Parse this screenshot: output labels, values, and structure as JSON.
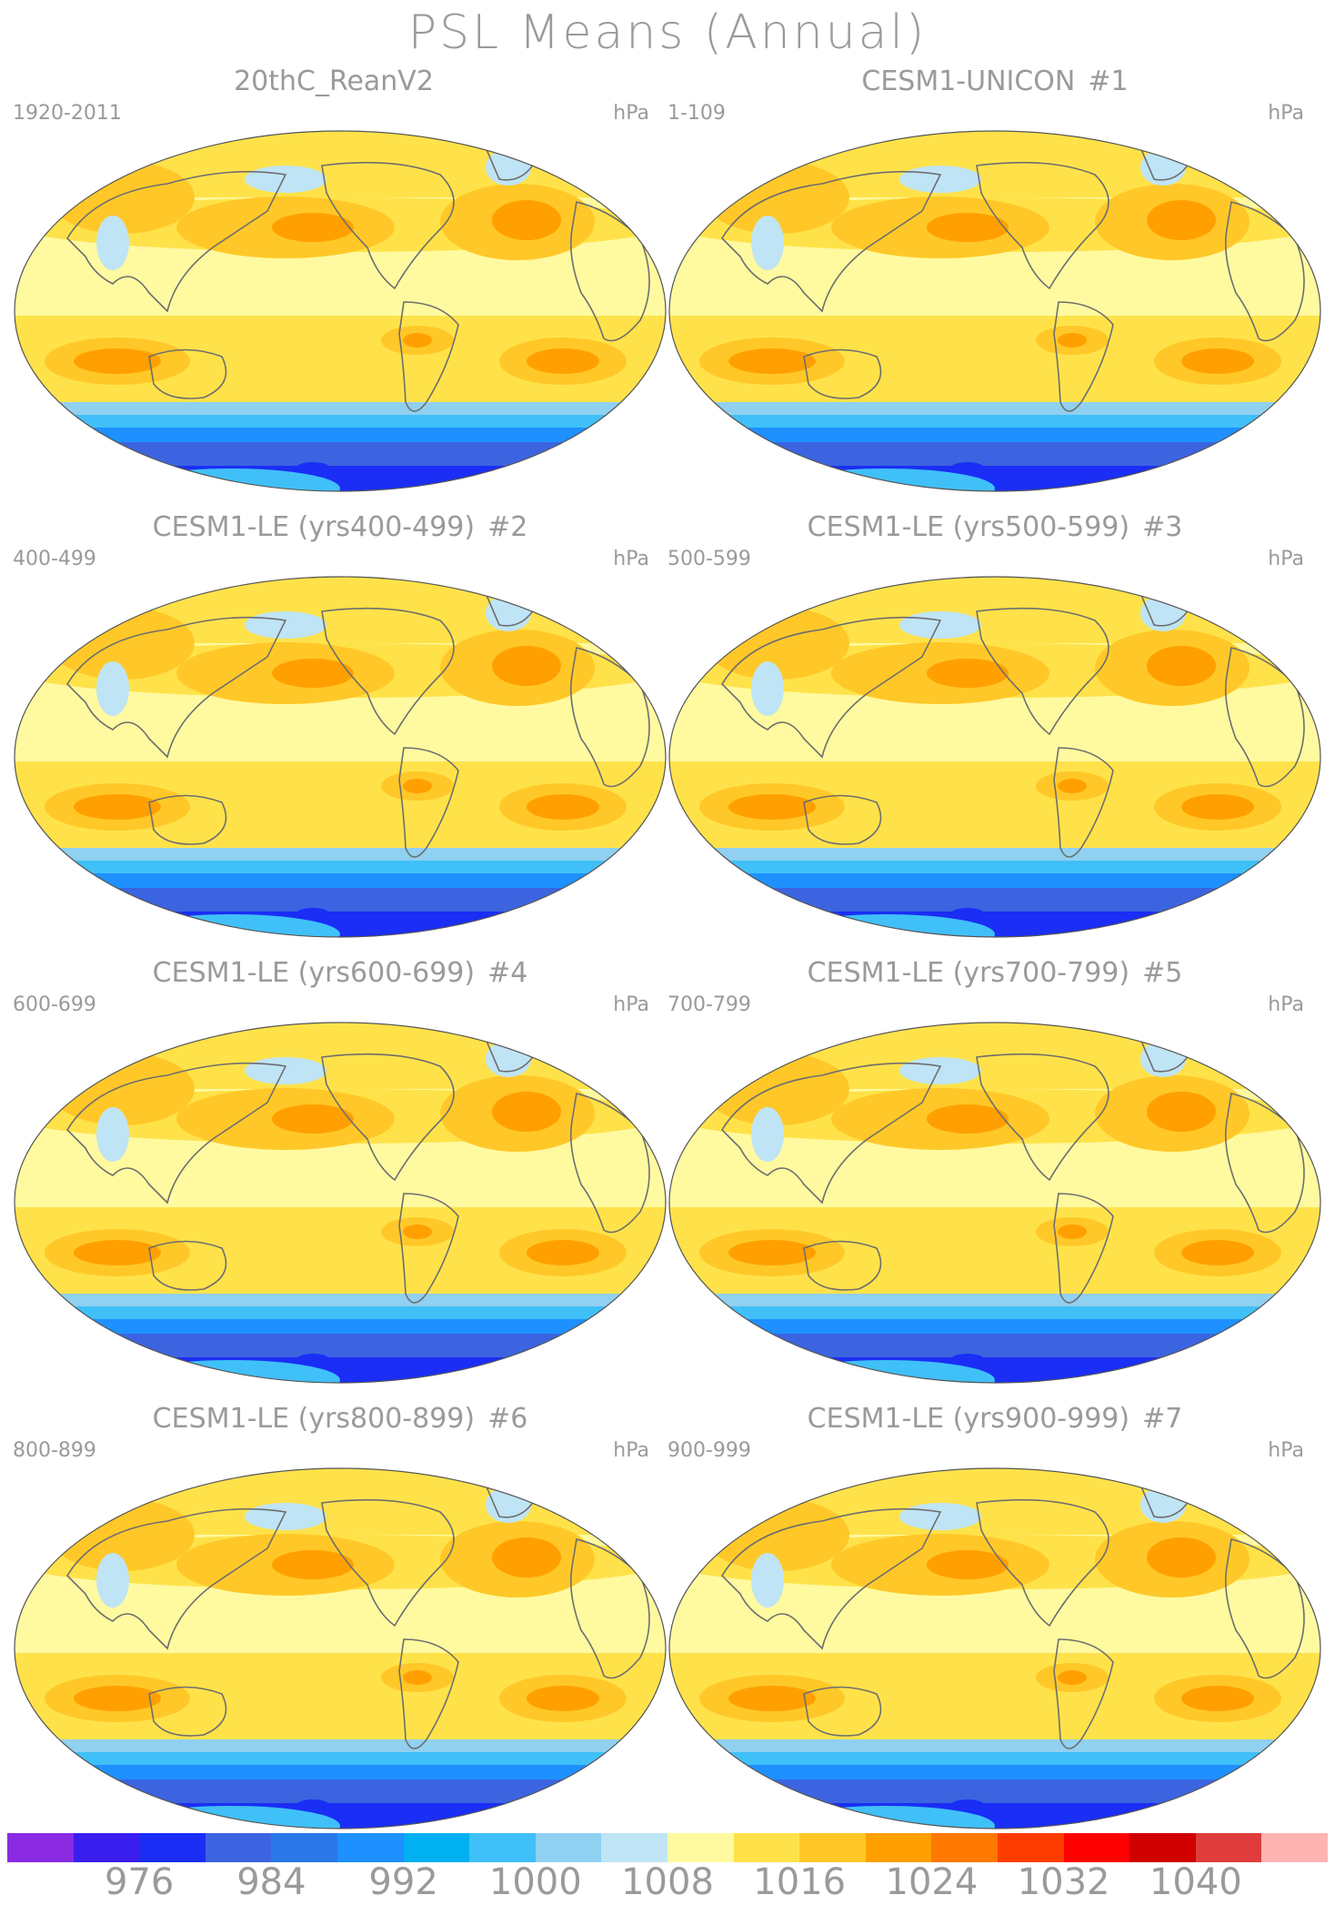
{
  "figure_title": "PSL Means (Annual)",
  "panels": [
    {
      "title": "20thC_ReanV2",
      "number": "",
      "period": "1920-2011",
      "units": "hPa"
    },
    {
      "title": "CESM1-UNICON",
      "number": "#1",
      "period": "1-109",
      "units": "hPa"
    },
    {
      "title": "CESM1-LE (yrs400-499)",
      "number": "#2",
      "period": "400-499",
      "units": "hPa"
    },
    {
      "title": "CESM1-LE (yrs500-599)",
      "number": "#3",
      "period": "500-599",
      "units": "hPa"
    },
    {
      "title": "CESM1-LE (yrs600-699)",
      "number": "#4",
      "period": "600-699",
      "units": "hPa"
    },
    {
      "title": "CESM1-LE (yrs700-799)",
      "number": "#5",
      "period": "700-799",
      "units": "hPa"
    },
    {
      "title": "CESM1-LE (yrs800-899)",
      "number": "#6",
      "period": "800-899",
      "units": "hPa"
    },
    {
      "title": "CESM1-LE (yrs900-999)",
      "number": "#7",
      "period": "900-999",
      "units": "hPa"
    }
  ],
  "colorbar": {
    "colors": [
      "#8a2be2",
      "#3a1ef0",
      "#1a2ef5",
      "#3c64e0",
      "#2a78e8",
      "#1e90ff",
      "#00b0f0",
      "#40c0f8",
      "#90d0f0",
      "#bfe4f5",
      "#fffaa0",
      "#ffe24a",
      "#ffc828",
      "#ffa000",
      "#ff7800",
      "#ff3c00",
      "#ff0000",
      "#d00000",
      "#e03c3c",
      "#ffb4b4"
    ],
    "labels": [
      "976",
      "984",
      "992",
      "1000",
      "1008",
      "1016",
      "1024",
      "1032",
      "1040"
    ]
  },
  "map_colors": {
    "ocean_base": "#fffaa0",
    "subtropical_high": "#ffe24a",
    "high_core": "#ffc828",
    "high_peak": "#ffa000",
    "low_light": "#bfe4f5",
    "southern_1": "#90d0f0",
    "southern_2": "#40c0f8",
    "southern_3": "#1e90ff",
    "southern_4": "#3c64e0",
    "southern_5": "#1a2ef5",
    "coast": "#6e6e6e"
  }
}
